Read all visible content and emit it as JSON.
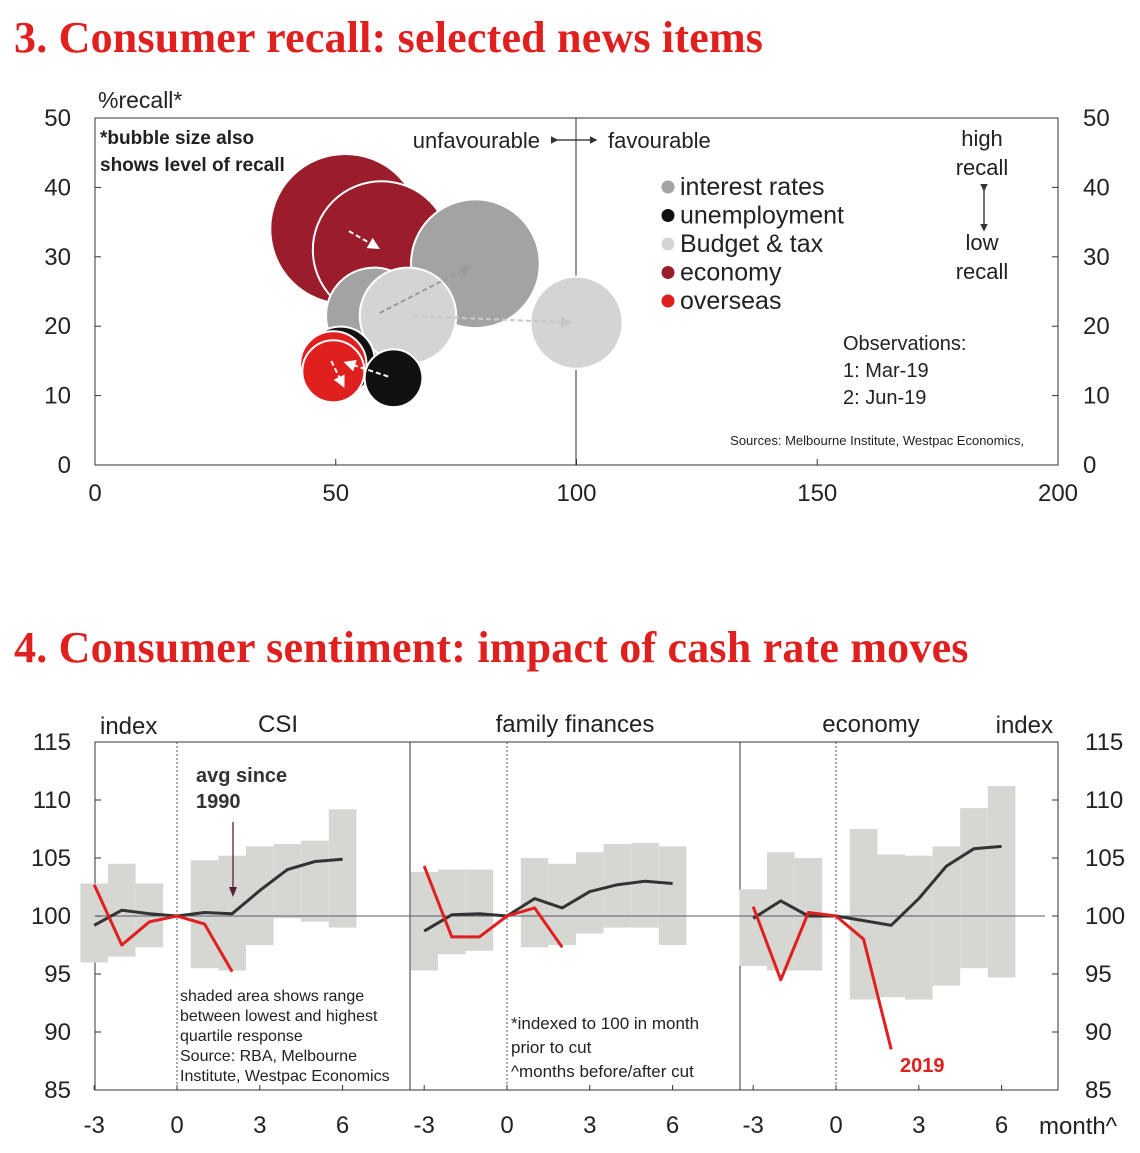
{
  "titles": {
    "chart1": "3. Consumer recall: selected news items",
    "chart2": "4. Consumer sentiment: impact of cash rate moves"
  },
  "chart_data": [
    {
      "type": "scatter",
      "title": "3. Consumer recall: selected news items",
      "ylabel": "%recall*",
      "xlim": [
        0,
        200
      ],
      "ylim": [
        0,
        50
      ],
      "xticks": [
        "0",
        "50",
        "100",
        "150",
        "200"
      ],
      "yticks": [
        "0",
        "10",
        "20",
        "30",
        "40",
        "50"
      ],
      "annotations": {
        "note": [
          "*bubble size also",
          "shows level of recall"
        ],
        "unfavourable": "unfavourable",
        "favourable": "favourable",
        "high_recall": [
          "high",
          "recall"
        ],
        "low_recall": [
          "low",
          "recall"
        ],
        "observations": [
          "Observations:",
          "1: Mar-19",
          "2: Jun-19"
        ],
        "sources": "Sources: Melbourne Institute, Westpac Economics,"
      },
      "series": [
        {
          "name": "interest rates",
          "color": "#a3a3a3",
          "points": [
            {
              "obs": "Mar-19",
              "x": 58,
              "y": 21.5
            },
            {
              "obs": "Jun-19",
              "x": 79,
              "y": 29
            }
          ]
        },
        {
          "name": "unemployment",
          "color": "#111111",
          "points": [
            {
              "obs": "Mar-19",
              "x": 62,
              "y": 12.5
            },
            {
              "obs": "Jun-19",
              "x": 51,
              "y": 15
            }
          ]
        },
        {
          "name": "Budget & tax",
          "color": "#d4d4d4",
          "points": [
            {
              "obs": "Mar-19",
              "x": 65,
              "y": 21.5
            },
            {
              "obs": "Jun-19",
              "x": 100,
              "y": 20.5
            }
          ]
        },
        {
          "name": "economy",
          "color": "#9b1c2a",
          "points": [
            {
              "obs": "Mar-19",
              "x": 52,
              "y": 34
            },
            {
              "obs": "Jun-19",
              "x": 59.5,
              "y": 31
            }
          ]
        },
        {
          "name": "overseas",
          "color": "#e0201f",
          "points": [
            {
              "obs": "Mar-19",
              "x": 49.5,
              "y": 14.5
            },
            {
              "obs": "Jun-19",
              "x": 49.5,
              "y": 13.5
            }
          ]
        }
      ]
    },
    {
      "type": "line",
      "title": "4. Consumer sentiment: impact of cash rate moves",
      "ylim": [
        85,
        115
      ],
      "yticks": [
        "85",
        "90",
        "95",
        "100",
        "105",
        "110",
        "115"
      ],
      "xlabel": "month^",
      "left_label": "index",
      "right_label": "index",
      "xticks": [
        "-3",
        "0",
        "3",
        "6"
      ],
      "annotations": {
        "avg_since": [
          "avg since",
          "1990"
        ],
        "shaded_note": [
          "shaded area shows range",
          "between lowest and highest",
          "quartile response",
          "Source: RBA, Melbourne",
          "Institute, Westpac Economics"
        ],
        "indexed_note": [
          "*indexed to 100 in month",
          "prior to cut",
          "^months before/after cut"
        ],
        "year_label": "2019"
      },
      "series_names": [
        "avg since 1990",
        "2019"
      ],
      "months": [
        -3,
        -2,
        -1,
        0,
        1,
        2,
        3,
        4,
        5,
        6
      ],
      "panels": [
        {
          "name": "CSI",
          "range_low": [
            96.0,
            96.5,
            97.3,
            null,
            95.5,
            95.3,
            97.5,
            99.8,
            99.5,
            99.0
          ],
          "range_high": [
            102.8,
            104.5,
            102.8,
            null,
            104.8,
            105.2,
            106.0,
            106.2,
            106.5,
            109.2
          ],
          "avg": [
            99.2,
            100.5,
            100.2,
            100.0,
            100.3,
            100.2,
            102.2,
            104.0,
            104.7,
            104.9
          ],
          "y2019": [
            102.7,
            97.5,
            99.5,
            100.0,
            99.3,
            95.2,
            null,
            null,
            null,
            null
          ]
        },
        {
          "name": "family finances",
          "range_low": [
            95.3,
            96.7,
            97.0,
            null,
            97.3,
            97.5,
            98.5,
            99.0,
            99.0,
            97.5
          ],
          "range_high": [
            103.8,
            104.0,
            104.0,
            null,
            105.0,
            104.5,
            105.5,
            106.2,
            106.3,
            106.0
          ],
          "avg": [
            98.7,
            100.1,
            100.2,
            100.0,
            101.5,
            100.7,
            102.1,
            102.7,
            103.0,
            102.8
          ],
          "y2019": [
            104.3,
            98.2,
            98.2,
            100.0,
            100.7,
            97.3,
            null,
            null,
            null,
            null
          ]
        },
        {
          "name": "economy",
          "range_low": [
            95.7,
            95.3,
            95.3,
            null,
            92.8,
            93.0,
            92.8,
            94.0,
            95.5,
            94.7
          ],
          "range_high": [
            102.3,
            105.5,
            105.0,
            null,
            107.5,
            105.3,
            105.2,
            106.0,
            109.3,
            111.2
          ],
          "avg": [
            99.8,
            101.3,
            100.0,
            100.0,
            99.6,
            99.2,
            101.5,
            104.3,
            105.8,
            106.0
          ],
          "y2019": [
            100.8,
            94.5,
            100.3,
            100.0,
            98.0,
            88.5,
            null,
            null,
            null,
            null
          ]
        }
      ]
    }
  ]
}
